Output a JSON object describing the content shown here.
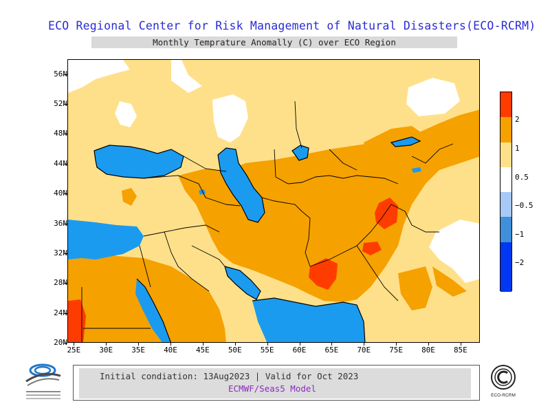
{
  "title": "ECO Regional Center for Risk Management of Natural Disasters(ECO-RCRM)",
  "subtitle": "Monthly Temprature Anomally (C) over ECO Region",
  "map": {
    "lat_labels": [
      "56N",
      "52N",
      "48N",
      "44N",
      "40N",
      "36N",
      "32N",
      "28N",
      "24N",
      "20N"
    ],
    "lat_values": [
      56,
      52,
      48,
      44,
      40,
      36,
      32,
      28,
      24,
      20
    ],
    "lon_labels": [
      "25E",
      "30E",
      "35E",
      "40E",
      "45E",
      "50E",
      "55E",
      "60E",
      "65E",
      "70E",
      "75E",
      "80E",
      "85E"
    ],
    "lon_values": [
      25,
      30,
      35,
      40,
      45,
      50,
      55,
      60,
      65,
      70,
      75,
      80,
      85
    ],
    "lon_range": [
      24,
      88
    ],
    "lat_range": [
      20,
      58
    ],
    "colors": {
      "light_yellow": "#ffe08a",
      "orange": "#f5a100",
      "red": "#ff3c00",
      "white": "#ffffff",
      "sea_blue": "#1a9bef",
      "border": "#000000"
    }
  },
  "legend": {
    "labels": [
      "2",
      "1",
      "0.5",
      "−0.5",
      "−1",
      "−2"
    ],
    "colors": [
      "#ff3c00",
      "#f5a100",
      "#ffe08a",
      "#ffffff",
      "#a7c9f7",
      "#3f8fd9",
      "#0037f0",
      "#0020e0"
    ]
  },
  "info": {
    "line1": "Initial condiation: 13Aug2023 | Valid for Oct 2023",
    "line2": "ECMWF/Seas5 Model"
  },
  "logos": {
    "left_icon": "institute-logo-icon",
    "right_icon": "eco-rcrm-logo-icon",
    "right_text": "ECO-RCRM"
  }
}
